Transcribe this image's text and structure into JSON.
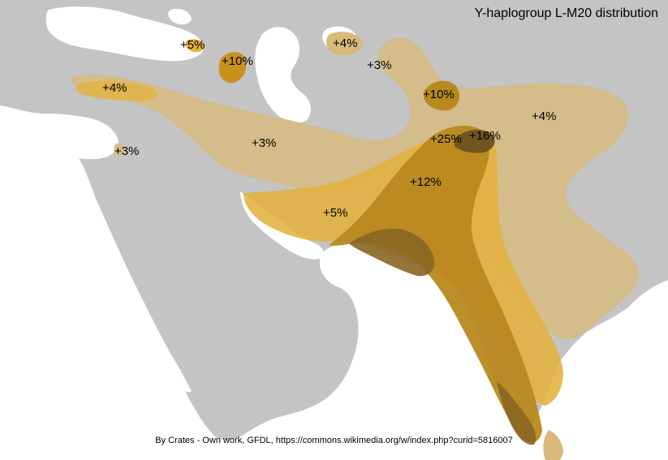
{
  "title": "Y-haplogroup L-M20 distribution",
  "credit": "By Crates - Own work, GFDL, https://commons.wikimedia.org/w/index.php?curid=5816007",
  "colors": {
    "land": "#c4c4c4",
    "water": "#ffffff",
    "band_3": "#d5bb85",
    "band_4": "#d8b97a",
    "band_5": "#e3b13e",
    "band_10": "#c9921e",
    "band_12": "#b8891f",
    "band_16": "#8a6522",
    "band_25": "#6b5220"
  },
  "labels": {
    "black_sea_5": "+5%",
    "caucasus_10": "+10%",
    "aral_4": "+4%",
    "central_asia_3": "+3%",
    "anatolia_4": "+4%",
    "levant_3": "+3%",
    "iran_3": "+3%",
    "afghan_10": "+10%",
    "himalaya_4": "+4%",
    "pakistan_25": "+25%",
    "kashmir_16": "+16%",
    "india_12": "+12%",
    "makran_5": "+5%"
  }
}
